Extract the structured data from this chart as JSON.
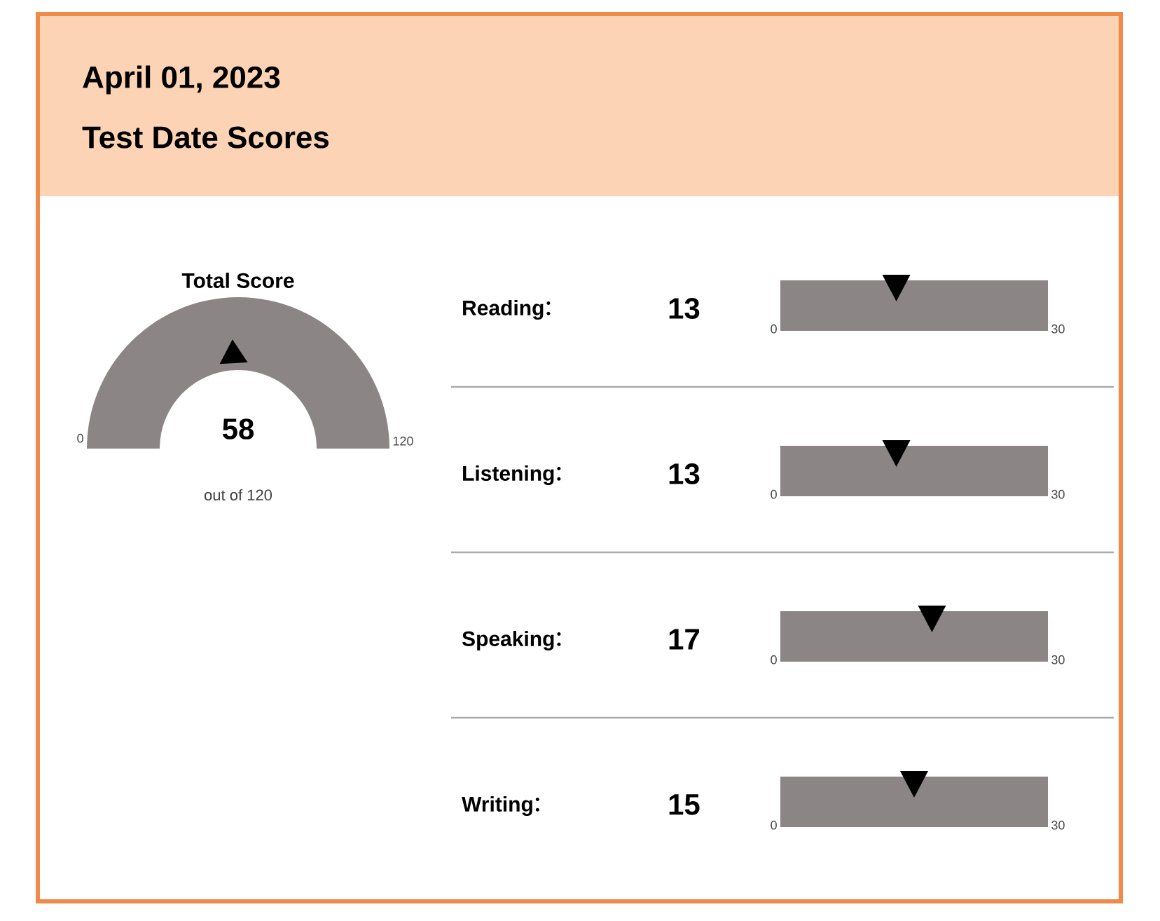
{
  "chart_data": [
    {
      "type": "other",
      "title": "April 01, 2023",
      "subtitle": "Test Date Scores",
      "color": "#fcd3b5"
    },
    {
      "type": "other",
      "title": "Total Score",
      "values": [
        58
      ],
      "color": "#8c8585",
      "data_labels": true,
      "annotations": [
        "0",
        "120",
        "out of 120"
      ]
    },
    {
      "type": "other",
      "categories": [
        "Reading",
        "Listening",
        "Speaking",
        "Writing"
      ],
      "values": [
        13,
        13,
        17,
        15
      ],
      "annotations": [
        "0",
        "30"
      ],
      "color": "#8c8585",
      "data_labels": true
    }
  ]
}
